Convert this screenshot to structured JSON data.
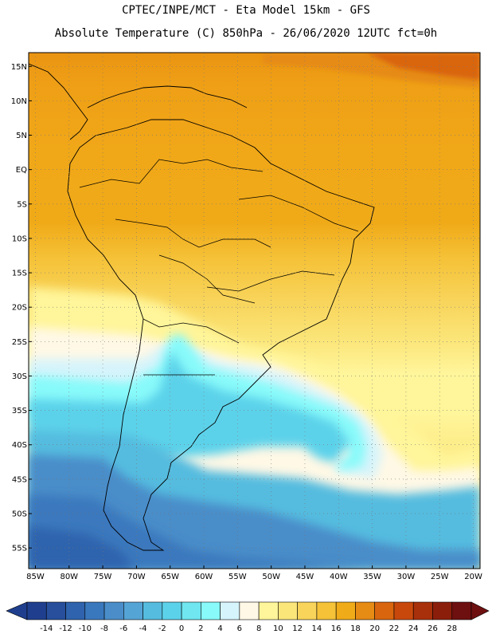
{
  "header": {
    "line1": "CPTEC/INPE/MCT -  Eta Model 15km - GFS",
    "line2": "Absolute Temperature (C) 850hPa - 26/06/2020 12UTC fct=0h"
  },
  "map": {
    "lat_ticks": [
      "15N",
      "10N",
      "5N",
      "EQ",
      "5S",
      "10S",
      "15S",
      "20S",
      "25S",
      "30S",
      "35S",
      "40S",
      "45S",
      "50S",
      "55S"
    ],
    "lat_values": [
      15,
      10,
      5,
      0,
      -5,
      -10,
      -15,
      -20,
      -25,
      -30,
      -35,
      -40,
      -45,
      -50,
      -55
    ],
    "lon_ticks": [
      "85W",
      "80W",
      "75W",
      "70W",
      "65W",
      "60W",
      "55W",
      "50W",
      "45W",
      "40W",
      "35W",
      "30W",
      "25W",
      "20W"
    ],
    "lon_values": [
      -85,
      -80,
      -75,
      -70,
      -65,
      -60,
      -55,
      -50,
      -45,
      -40,
      -35,
      -30,
      -25,
      -20
    ],
    "lat_range": [
      -58,
      17
    ],
    "lon_range": [
      -86,
      -19
    ]
  },
  "colorbar": {
    "labels": [
      "-14",
      "-12",
      "-10",
      "-8",
      "-6",
      "-4",
      "-2",
      "0",
      "2",
      "4",
      "6",
      "8",
      "10",
      "12",
      "14",
      "16",
      "18",
      "20",
      "22",
      "24",
      "26",
      "28"
    ],
    "colors": [
      "#1f3f8e",
      "#274f9c",
      "#2f63ad",
      "#3a78bd",
      "#4a8dc9",
      "#55a4d6",
      "#55bcdf",
      "#5cd2ea",
      "#6fe6f0",
      "#88fafa",
      "#d6f4fb",
      "#fff8e6",
      "#fff59a",
      "#fbe67a",
      "#f8d45a",
      "#f5c238",
      "#f0ab18",
      "#e68b14",
      "#d9650e",
      "#c8480c",
      "#a8300a",
      "#8b1e0b",
      "#6e1010"
    ]
  }
}
